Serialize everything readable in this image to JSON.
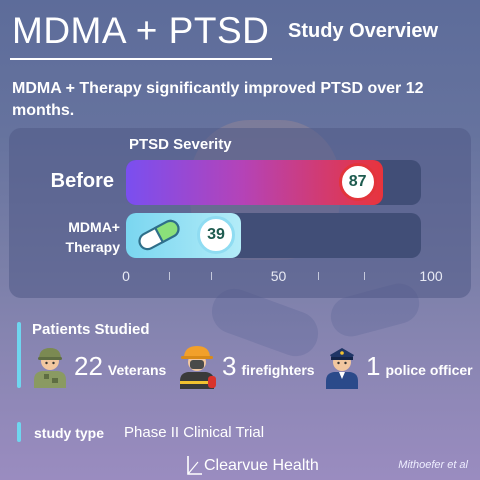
{
  "header": {
    "title": "MDMA + PTSD",
    "tag": "Study Overview"
  },
  "headline": "MDMA + Therapy significantly improved PTSD over 12 months.",
  "chart_data": {
    "type": "bar",
    "orientation": "horizontal",
    "title": "PTSD Severity",
    "categories": [
      "Before",
      "MDMA+ Therapy"
    ],
    "values": [
      87,
      39
    ],
    "xlim": [
      0,
      100
    ],
    "ticks": [
      "0",
      "50",
      "100"
    ],
    "colors": [
      "#e3343b",
      "#8fdcf2"
    ]
  },
  "labels": {
    "before": "Before",
    "mdma_line1": "MDMA+",
    "mdma_line2": "Therapy"
  },
  "patients": {
    "label": "Patients Studied",
    "groups": [
      {
        "count": "22",
        "label": "Veterans",
        "icon": "soldier-icon"
      },
      {
        "count": "3",
        "label": "firefighters",
        "icon": "firefighter-icon"
      },
      {
        "count": "1",
        "label": "police officer",
        "icon": "police-officer-icon"
      }
    ]
  },
  "study": {
    "label": "study type",
    "value": "Phase II Clinical Trial"
  },
  "footer": {
    "brand": "Clearvue Health",
    "citation": "Mithoefer et al"
  }
}
